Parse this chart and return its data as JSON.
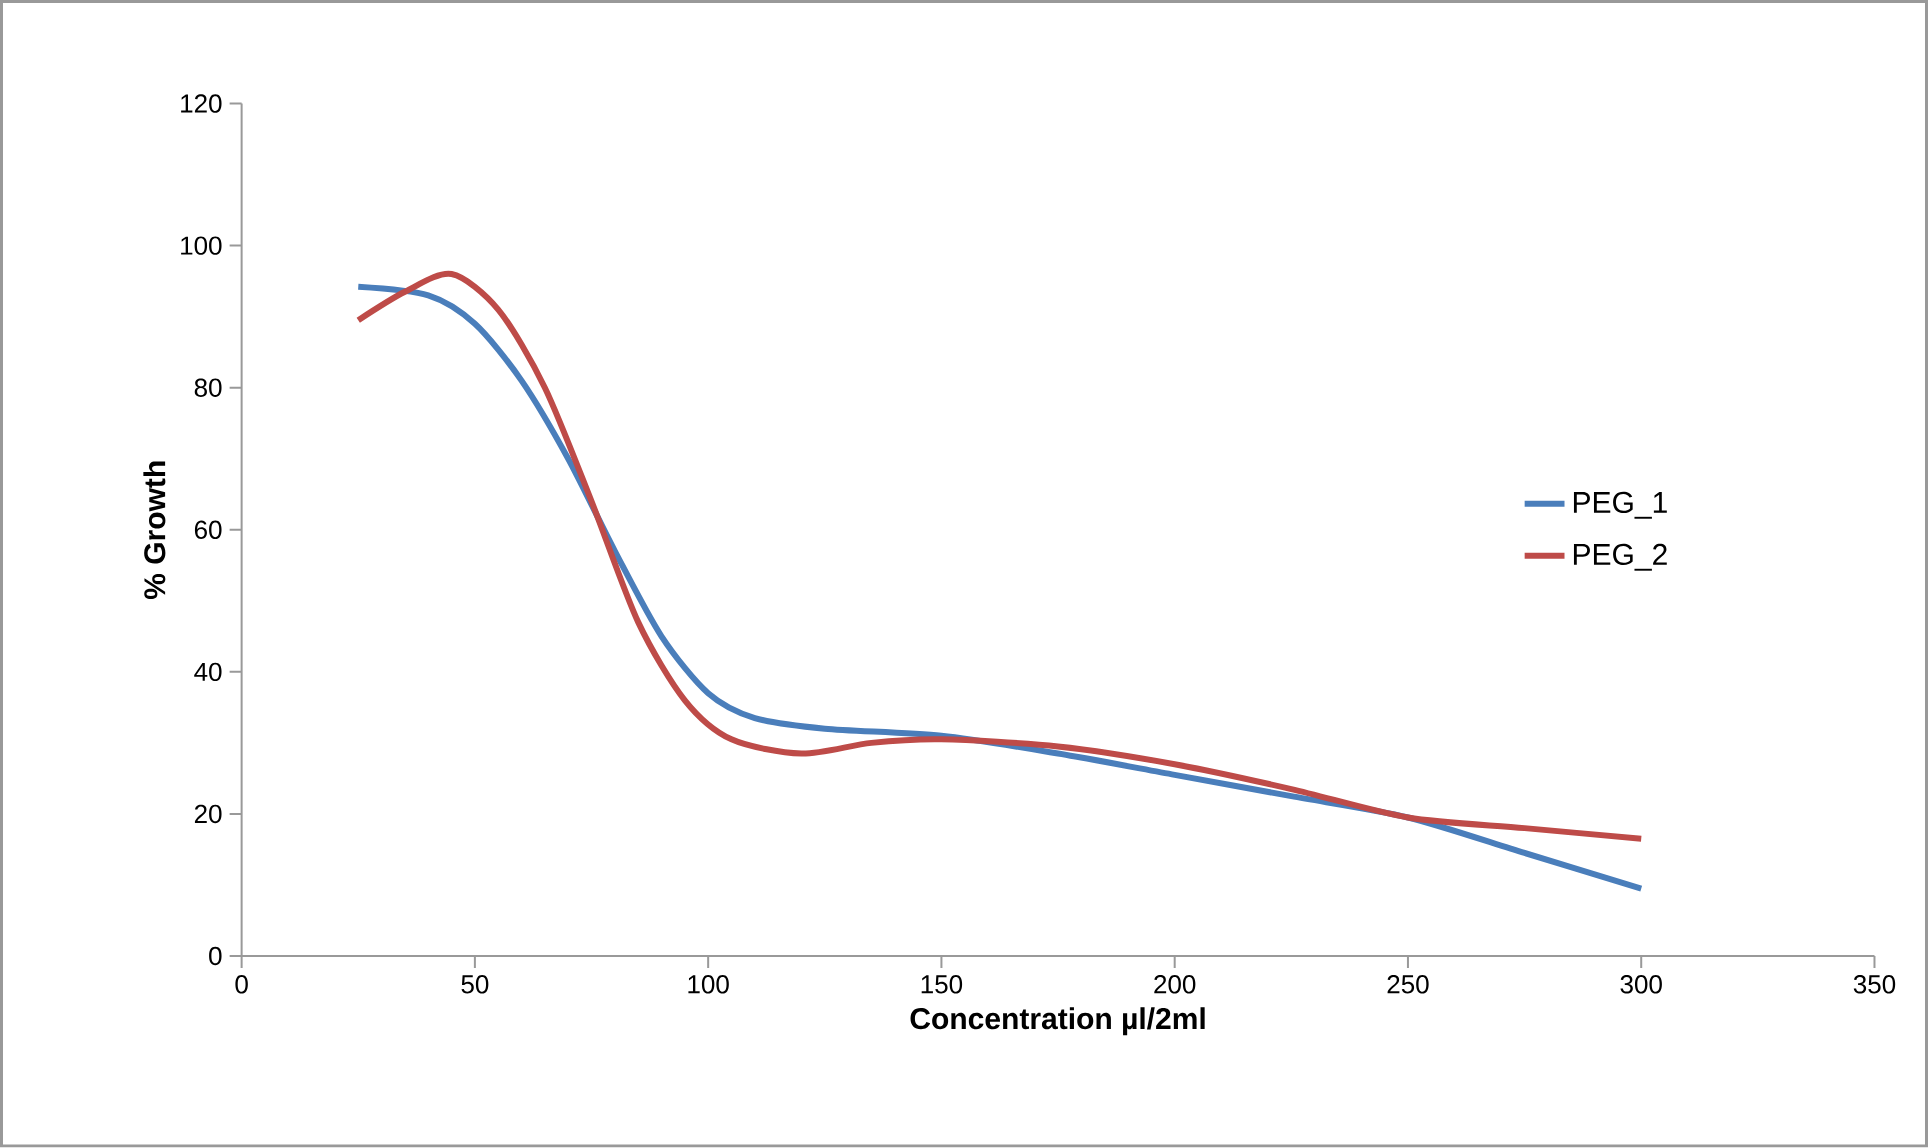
{
  "chart_data": {
    "type": "line",
    "xlabel": "Concentration  µl/2ml",
    "ylabel": "% Growth",
    "xlim": [
      0,
      350
    ],
    "xticks": [
      0,
      50,
      100,
      150,
      200,
      250,
      300,
      350
    ],
    "ylim": [
      0,
      120
    ],
    "yticks": [
      0,
      20,
      40,
      60,
      80,
      100,
      120
    ],
    "grid": false,
    "legend": "right",
    "marker": "none",
    "line_style": "solid",
    "series": [
      {
        "name": "PEG_1",
        "color": "#4a7ebb",
        "x": [
          25,
          40,
          50,
          60,
          70,
          80,
          90,
          100,
          110,
          125,
          150,
          175,
          200,
          225,
          250,
          275,
          300
        ],
        "values": [
          94.2,
          93,
          89,
          81,
          70,
          57,
          45,
          37,
          33.5,
          32,
          31,
          28.5,
          25.5,
          22.5,
          19.5,
          14.5,
          9.5
        ]
      },
      {
        "name": "PEG_2",
        "color": "#be4b48",
        "x": [
          25,
          35,
          45,
          55,
          65,
          75,
          85,
          95,
          105,
          120,
          135,
          150,
          175,
          200,
          225,
          250,
          275,
          300
        ],
        "values": [
          89.5,
          93.5,
          96,
          91,
          80,
          64,
          47,
          36,
          30.5,
          28.5,
          30,
          30.5,
          29.5,
          27,
          23.5,
          19.5,
          18,
          16.5
        ]
      }
    ]
  }
}
